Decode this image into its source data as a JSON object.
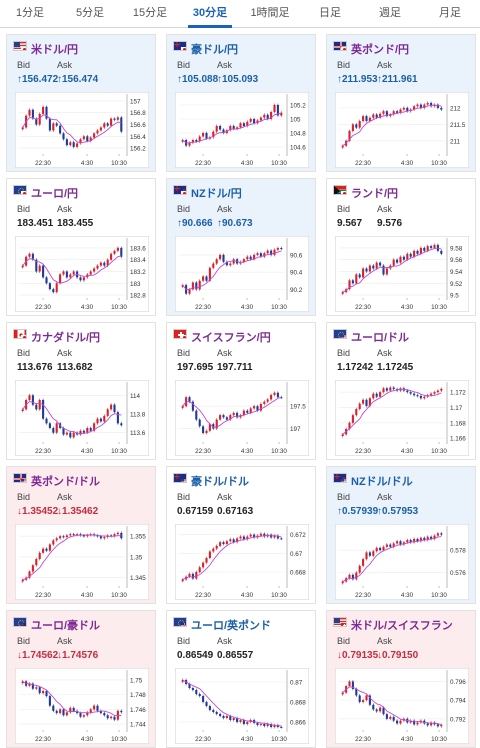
{
  "tabs": [
    {
      "label": "1分足",
      "active": false
    },
    {
      "label": "5分足",
      "active": false
    },
    {
      "label": "15分足",
      "active": false
    },
    {
      "label": "30分足",
      "active": true
    },
    {
      "label": "1時間足",
      "active": false
    },
    {
      "label": "日足",
      "active": false
    },
    {
      "label": "週足",
      "active": false
    },
    {
      "label": "月足",
      "active": false
    }
  ],
  "labels": {
    "bid": "Bid",
    "ask": "Ask"
  },
  "colors": {
    "up_candle": "#d9212a",
    "down_candle": "#1f3a99",
    "moving_average": "#c04ad0",
    "tab_active": "#1a62b8"
  },
  "cards": [
    {
      "title": "米ドル/円",
      "flag": "us-jp",
      "title_color": "purple",
      "bg": "up",
      "dir": "up",
      "bid": "↑156.472",
      "ask": "↑156.474",
      "ticks": [
        "157",
        "156.8",
        "156.6",
        "156.4",
        "156.2"
      ],
      "times": [
        "22:30",
        "4:30",
        "10:30"
      ],
      "chart_data": {
        "type": "candlestick",
        "ylim": [
          156.1,
          157.05
        ],
        "close": [
          156.55,
          156.75,
          156.85,
          156.7,
          156.6,
          156.78,
          156.9,
          156.7,
          156.5,
          156.62,
          156.58,
          156.45,
          156.35,
          156.25,
          156.3,
          156.22,
          156.28,
          156.35,
          156.4,
          156.32,
          156.38,
          156.45,
          156.5,
          156.55,
          156.62,
          156.58,
          156.7,
          156.68,
          156.72,
          156.48
        ]
      }
    },
    {
      "title": "豪ドル/円",
      "flag": "au-jp",
      "title_color": "blue",
      "bg": "up",
      "dir": "up",
      "bid": "↑105.088",
      "ask": "↑105.093",
      "ticks": [
        "105.2",
        "105",
        "104.8",
        "104.6"
      ],
      "times": [
        "22:30",
        "4:30",
        "10:30"
      ],
      "chart_data": {
        "type": "candlestick",
        "ylim": [
          104.5,
          105.3
        ],
        "close": [
          104.7,
          104.62,
          104.66,
          104.7,
          104.68,
          104.75,
          104.8,
          104.72,
          104.74,
          104.82,
          104.9,
          104.85,
          104.8,
          104.84,
          104.9,
          104.86,
          104.88,
          104.94,
          104.9,
          104.96,
          105.0,
          104.94,
          104.98,
          105.02,
          105.06,
          105.0,
          105.1,
          105.2,
          105.05,
          105.09
        ]
      }
    },
    {
      "title": "英ポンド/円",
      "flag": "gb-jp",
      "title_color": "purple",
      "bg": "up",
      "dir": "up",
      "bid": "↑211.953",
      "ask": "↑211.961",
      "ticks": [
        "212",
        "211.5",
        "211"
      ],
      "times": [
        "22:30",
        "4:30",
        "10:30"
      ],
      "chart_data": {
        "type": "candlestick",
        "ylim": [
          210.6,
          212.3
        ],
        "close": [
          210.85,
          211.0,
          211.3,
          211.5,
          211.4,
          211.6,
          211.75,
          211.6,
          211.7,
          211.8,
          211.7,
          211.82,
          211.9,
          211.75,
          211.8,
          211.9,
          211.85,
          211.95,
          212.0,
          211.9,
          211.95,
          212.05,
          212.1,
          212.0,
          212.1,
          212.15,
          212.05,
          212.1,
          212.0,
          211.95
        ]
      }
    },
    {
      "title": "ユーロ/円",
      "flag": "eu-jp",
      "title_color": "purple",
      "bg": "none",
      "dir": "flat",
      "bid": "183.451",
      "ask": "183.455",
      "ticks": [
        "183.6",
        "183.4",
        "183.2",
        "183",
        "182.8"
      ],
      "times": [
        "22:30",
        "4:30",
        "10:30"
      ],
      "chart_data": {
        "type": "candlestick",
        "ylim": [
          182.75,
          183.7
        ],
        "close": [
          183.3,
          183.45,
          183.5,
          183.4,
          183.2,
          183.3,
          183.1,
          183.0,
          182.9,
          182.85,
          183.0,
          183.15,
          183.2,
          183.1,
          183.15,
          183.2,
          183.1,
          183.05,
          183.1,
          183.15,
          183.2,
          183.25,
          183.3,
          183.35,
          183.3,
          183.4,
          183.5,
          183.55,
          183.6,
          183.45
        ]
      }
    },
    {
      "title": "NZドル/円",
      "flag": "nz-jp",
      "title_color": "blue",
      "bg": "up",
      "dir": "up",
      "bid": "↑90.666",
      "ask": "↑90.673",
      "ticks": [
        "90.6",
        "90.4",
        "90.2"
      ],
      "times": [
        "22:30",
        "4:30",
        "10:30"
      ],
      "chart_data": {
        "type": "candlestick",
        "ylim": [
          90.1,
          90.75
        ],
        "close": [
          90.25,
          90.15,
          90.2,
          90.28,
          90.2,
          90.3,
          90.35,
          90.3,
          90.45,
          90.5,
          90.55,
          90.6,
          90.52,
          90.48,
          90.5,
          90.55,
          90.5,
          90.52,
          90.55,
          90.58,
          90.55,
          90.6,
          90.62,
          90.58,
          90.62,
          90.65,
          90.6,
          90.66,
          90.68,
          90.67
        ]
      }
    },
    {
      "title": "ランド/円",
      "flag": "za-jp",
      "title_color": "purple",
      "bg": "none",
      "dir": "flat",
      "bid": "9.567",
      "ask": "9.576",
      "ticks": [
        "9.58",
        "9.56",
        "9.54",
        "9.52",
        "9.5"
      ],
      "times": [
        "22:30",
        "4:30",
        "10:30"
      ],
      "chart_data": {
        "type": "candlestick",
        "ylim": [
          9.495,
          9.59
        ],
        "close": [
          9.505,
          9.51,
          9.525,
          9.52,
          9.535,
          9.53,
          9.545,
          9.54,
          9.55,
          9.545,
          9.555,
          9.55,
          9.535,
          9.545,
          9.55,
          9.56,
          9.555,
          9.565,
          9.56,
          9.57,
          9.565,
          9.575,
          9.57,
          9.58,
          9.575,
          9.583,
          9.58,
          9.585,
          9.575,
          9.57
        ]
      }
    },
    {
      "title": "カナダドル/円",
      "flag": "ca-jp",
      "title_color": "purple",
      "bg": "none",
      "dir": "flat",
      "bid": "113.676",
      "ask": "113.682",
      "ticks": [
        "114",
        "113.8",
        "113.6"
      ],
      "times": [
        "22:30",
        "4:30",
        "10:30"
      ],
      "chart_data": {
        "type": "candlestick",
        "ylim": [
          113.5,
          114.1
        ],
        "close": [
          113.85,
          113.95,
          114.0,
          113.9,
          113.85,
          113.95,
          113.75,
          113.7,
          113.65,
          113.6,
          113.7,
          113.65,
          113.58,
          113.6,
          113.55,
          113.6,
          113.58,
          113.62,
          113.6,
          113.65,
          113.62,
          113.7,
          113.75,
          113.72,
          113.78,
          113.85,
          113.9,
          113.82,
          113.7,
          113.68
        ]
      }
    },
    {
      "title": "スイスフラン/円",
      "flag": "ch-jp",
      "title_color": "purple",
      "bg": "none",
      "dir": "flat",
      "bid": "197.695",
      "ask": "197.711",
      "ticks": [
        "197.5",
        "197"
      ],
      "times": [
        "22:30",
        "4:30",
        "10:30"
      ],
      "chart_data": {
        "type": "candlestick",
        "ylim": [
          196.7,
          197.95
        ],
        "close": [
          197.5,
          197.7,
          197.6,
          197.4,
          197.2,
          197.05,
          196.9,
          196.95,
          197.1,
          197.0,
          197.2,
          197.3,
          197.25,
          197.2,
          197.3,
          197.35,
          197.25,
          197.3,
          197.4,
          197.35,
          197.45,
          197.5,
          197.4,
          197.55,
          197.6,
          197.65,
          197.75,
          197.8,
          197.7,
          197.69
        ]
      }
    },
    {
      "title": "ユーロ/ドル",
      "flag": "eu-us",
      "title_color": "purple",
      "bg": "none",
      "dir": "flat",
      "bid": "1.17242",
      "ask": "1.17245",
      "ticks": [
        "1.172",
        "1.17",
        "1.168",
        "1.166"
      ],
      "times": [
        "22:30",
        "4:30",
        "10:30"
      ],
      "chart_data": {
        "type": "candlestick",
        "ylim": [
          1.1655,
          1.1728
        ],
        "close": [
          1.1665,
          1.1672,
          1.168,
          1.169,
          1.1698,
          1.1705,
          1.171,
          1.1702,
          1.1712,
          1.1718,
          1.1714,
          1.172,
          1.1725,
          1.1722,
          1.1726,
          1.1724,
          1.1722,
          1.1725,
          1.1722,
          1.172,
          1.1718,
          1.1716,
          1.1715,
          1.1712,
          1.1714,
          1.1716,
          1.1718,
          1.172,
          1.1722,
          1.17242
        ]
      }
    },
    {
      "title": "英ポンド/ドル",
      "flag": "gb-us",
      "title_color": "purple",
      "bg": "down",
      "dir": "down",
      "bid": "↓1.35452",
      "ask": "↓1.35462",
      "ticks": [
        "1.355",
        "1.35",
        "1.345"
      ],
      "times": [
        "22:30",
        "4:30",
        "10:30"
      ],
      "chart_data": {
        "type": "candlestick",
        "ylim": [
          1.343,
          1.3565
        ],
        "close": [
          1.3445,
          1.345,
          1.3465,
          1.348,
          1.3495,
          1.351,
          1.352,
          1.3515,
          1.353,
          1.354,
          1.3545,
          1.355,
          1.3548,
          1.3552,
          1.3555,
          1.3553,
          1.3555,
          1.3552,
          1.355,
          1.3553,
          1.3555,
          1.3552,
          1.355,
          1.3545,
          1.3548,
          1.3552,
          1.355,
          1.3555,
          1.3558,
          1.35452
        ]
      }
    },
    {
      "title": "豪ドル/ドル",
      "flag": "au-us",
      "title_color": "blue",
      "bg": "none",
      "dir": "flat",
      "bid": "0.67159",
      "ask": "0.67163",
      "ticks": [
        "0.672",
        "0.67",
        "0.668"
      ],
      "times": [
        "22:30",
        "4:30",
        "10:30"
      ],
      "chart_data": {
        "type": "candlestick",
        "ylim": [
          0.6665,
          0.6725
        ],
        "close": [
          0.6672,
          0.6675,
          0.6678,
          0.6673,
          0.668,
          0.6685,
          0.669,
          0.6695,
          0.6702,
          0.6705,
          0.6708,
          0.6712,
          0.671,
          0.6713,
          0.6715,
          0.6712,
          0.6716,
          0.6718,
          0.6715,
          0.6718,
          0.672,
          0.6717,
          0.6719,
          0.6721,
          0.6718,
          0.672,
          0.6717,
          0.6719,
          0.6716,
          0.67159
        ]
      }
    },
    {
      "title": "NZドル/ドル",
      "flag": "nz-us",
      "title_color": "blue",
      "bg": "up",
      "dir": "up",
      "bid": "↑0.57939",
      "ask": "↑0.57953",
      "ticks": [
        "0.578",
        "0.576"
      ],
      "times": [
        "22:30",
        "4:30",
        "10:30"
      ],
      "chart_data": {
        "type": "candlestick",
        "ylim": [
          0.5748,
          0.5798
        ],
        "close": [
          0.5752,
          0.5755,
          0.5758,
          0.5754,
          0.576,
          0.5766,
          0.5772,
          0.5778,
          0.5775,
          0.5779,
          0.5782,
          0.578,
          0.5783,
          0.5785,
          0.5783,
          0.5786,
          0.5788,
          0.5785,
          0.5787,
          0.5789,
          0.5787,
          0.579,
          0.5788,
          0.5791,
          0.5789,
          0.5792,
          0.579,
          0.5793,
          0.5795,
          0.57939
        ]
      }
    },
    {
      "title": "ユーロ/豪ドル",
      "flag": "eu-au",
      "title_color": "purple",
      "bg": "down",
      "dir": "down",
      "bid": "↓1.74562",
      "ask": "↓1.74576",
      "ticks": [
        "1.75",
        "1.748",
        "1.746",
        "1.744"
      ],
      "times": [
        "22:30",
        "4:30",
        "10:30"
      ],
      "chart_data": {
        "type": "candlestick",
        "ylim": [
          1.7432,
          1.7508
        ],
        "close": [
          1.7498,
          1.7492,
          1.7495,
          1.7488,
          1.749,
          1.7482,
          1.7485,
          1.7478,
          1.7465,
          1.7458,
          1.7455,
          1.746,
          1.7452,
          1.7456,
          1.7462,
          1.7458,
          1.7455,
          1.745,
          1.7452,
          1.7456,
          1.746,
          1.7465,
          1.7458,
          1.7455,
          1.7452,
          1.7448,
          1.745,
          1.7446,
          1.7458,
          1.74562
        ]
      }
    },
    {
      "title": "ユーロ/英ポンド",
      "flag": "eu-gb",
      "title_color": "blue",
      "bg": "none",
      "dir": "flat",
      "bid": "0.86549",
      "ask": "0.86557",
      "ticks": [
        "0.87",
        "0.868",
        "0.866"
      ],
      "times": [
        "22:30",
        "4:30",
        "10:30"
      ],
      "chart_data": {
        "type": "candlestick",
        "ylim": [
          0.8652,
          0.8708
        ],
        "close": [
          0.8702,
          0.8698,
          0.8694,
          0.8692,
          0.8688,
          0.8686,
          0.868,
          0.8676,
          0.8672,
          0.867,
          0.8668,
          0.8666,
          0.8664,
          0.8666,
          0.8662,
          0.8664,
          0.866,
          0.8662,
          0.8658,
          0.866,
          0.8662,
          0.8659,
          0.8657,
          0.8658,
          0.8656,
          0.8658,
          0.8655,
          0.8657,
          0.8655,
          0.86549
        ]
      }
    },
    {
      "title": "米ドル/スイスフラン",
      "flag": "us-ch",
      "title_color": "purple",
      "bg": "down",
      "dir": "down",
      "bid": "↓0.79135",
      "ask": "↓0.79150",
      "ticks": [
        "0.796",
        "0.794",
        "0.792"
      ],
      "times": [
        "22:30",
        "4:30",
        "10:30"
      ],
      "chart_data": {
        "type": "candlestick",
        "ylim": [
          0.7908,
          0.7968
        ],
        "close": [
          0.7948,
          0.7955,
          0.796,
          0.7952,
          0.7945,
          0.7938,
          0.794,
          0.7945,
          0.7935,
          0.793,
          0.7928,
          0.7932,
          0.7925,
          0.792,
          0.7922,
          0.7918,
          0.7915,
          0.7918,
          0.792,
          0.7916,
          0.7918,
          0.7914,
          0.7916,
          0.7918,
          0.7915,
          0.7913,
          0.7916,
          0.7914,
          0.7912,
          0.79135
        ]
      }
    }
  ]
}
